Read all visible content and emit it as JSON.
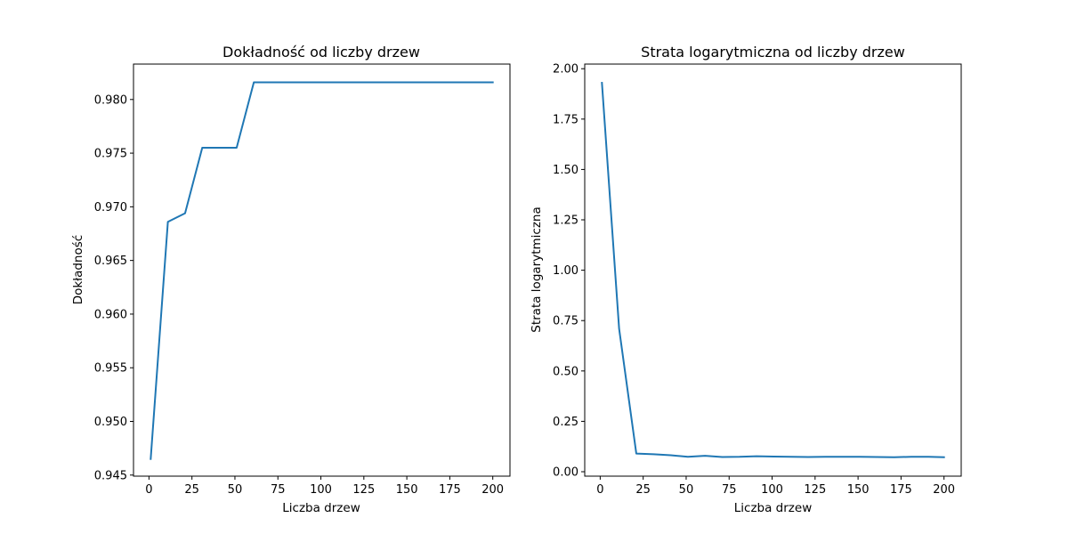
{
  "chart_data": [
    {
      "type": "line",
      "title": "Dokładność od liczby drzew",
      "xlabel": "Liczba drzew",
      "ylabel": "Dokładność",
      "xlim": [
        -9,
        210
      ],
      "ylim": [
        0.9449,
        0.9833
      ],
      "xticks": [
        0,
        25,
        50,
        75,
        100,
        125,
        150,
        175,
        200
      ],
      "xtick_labels": [
        "0",
        "25",
        "50",
        "75",
        "100",
        "125",
        "150",
        "175",
        "200"
      ],
      "yticks": [
        0.945,
        0.95,
        0.955,
        0.96,
        0.965,
        0.97,
        0.975,
        0.98
      ],
      "ytick_labels": [
        "0.945",
        "0.950",
        "0.955",
        "0.960",
        "0.965",
        "0.970",
        "0.975",
        "0.980"
      ],
      "grid": false,
      "color": "#1f77b4",
      "series": [
        {
          "x": [
            1,
            11,
            21,
            31,
            41,
            51,
            61,
            71,
            81,
            91,
            101,
            111,
            121,
            131,
            141,
            151,
            161,
            171,
            181,
            191,
            200
          ],
          "y": [
            0.9465,
            0.9686,
            0.9694,
            0.9755,
            0.9755,
            0.9755,
            0.9816,
            0.9816,
            0.9816,
            0.9816,
            0.9816,
            0.9816,
            0.9816,
            0.9816,
            0.9816,
            0.9816,
            0.9816,
            0.9816,
            0.9816,
            0.9816,
            0.9816
          ]
        }
      ]
    },
    {
      "type": "line",
      "title": "Strata logarytmiczna od liczby drzew",
      "xlabel": "Liczba drzew",
      "ylabel": "Strata logarytmiczna",
      "xlim": [
        -9,
        210
      ],
      "ylim": [
        -0.022,
        2.023
      ],
      "xticks": [
        0,
        25,
        50,
        75,
        100,
        125,
        150,
        175,
        200
      ],
      "xtick_labels": [
        "0",
        "25",
        "50",
        "75",
        "100",
        "125",
        "150",
        "175",
        "200"
      ],
      "yticks": [
        0,
        0.25,
        0.5,
        0.75,
        1.0,
        1.25,
        1.5,
        1.75,
        2.0
      ],
      "ytick_labels": [
        "0.00",
        "0.25",
        "0.50",
        "0.75",
        "1.00",
        "1.25",
        "1.50",
        "1.75",
        "2.00"
      ],
      "grid": false,
      "color": "#1f77b4",
      "series": [
        {
          "x": [
            1,
            11,
            21,
            31,
            41,
            51,
            61,
            71,
            81,
            91,
            101,
            111,
            121,
            131,
            141,
            151,
            161,
            171,
            181,
            191,
            200
          ],
          "y": [
            1.93,
            0.71,
            0.09,
            0.087,
            0.082,
            0.074,
            0.079,
            0.073,
            0.074,
            0.077,
            0.075,
            0.074,
            0.073,
            0.074,
            0.074,
            0.074,
            0.073,
            0.072,
            0.074,
            0.074,
            0.072
          ]
        }
      ]
    }
  ]
}
